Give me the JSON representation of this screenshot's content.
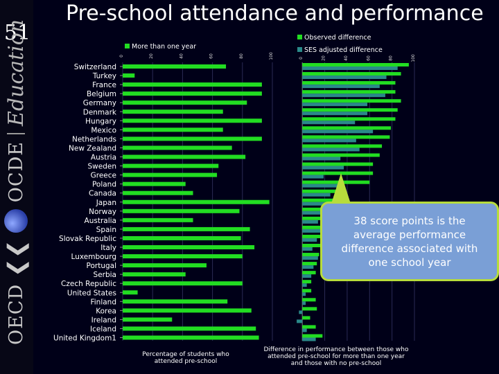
{
  "slide": {
    "number": "51",
    "title": "Pre-school attendance and performance"
  },
  "brand": {
    "oecd": "OECD",
    "ocde": "OCDE",
    "education": "Education"
  },
  "callout": {
    "text": "38 score points is the average performance difference associated with one school year"
  },
  "captions": {
    "left": "Percentage of students who attended pre-school",
    "right": "Difference in performance between those who attended pre-school for more than one year and those with no pre-school"
  },
  "colors": {
    "bars": "#22dd22",
    "adjusted": "#2a8a8a",
    "background": "#000018",
    "callout": "#7a9fd6",
    "callout_border": "#b7dc3c"
  },
  "chart_data": [
    {
      "type": "bar",
      "orientation": "horizontal",
      "legend": [
        "More than one year"
      ],
      "xlim": [
        0,
        100
      ],
      "ticks": [
        "0",
        "20",
        "40",
        "60",
        "80",
        "100"
      ],
      "categories": [
        "Switzerland",
        "Turkey",
        "France",
        "Belgium",
        "Germany",
        "Denmark",
        "Hungary",
        "Mexico",
        "Netherlands",
        "New Zealand",
        "Austria",
        "Sweden",
        "Greece",
        "Poland",
        "Canada",
        "Japan",
        "Norway",
        "Australia",
        "Spain",
        "Slovak Republic",
        "Italy",
        "Luxembourg",
        "Portugal",
        "Serbia",
        "Czech Republic",
        "United States",
        "Finland",
        "Korea",
        "Ireland",
        "Iceland",
        "United Kingdom1"
      ],
      "series": [
        {
          "name": "More than one year",
          "values": [
            69,
            8,
            93,
            93,
            83,
            67,
            93,
            67,
            93,
            73,
            82,
            64,
            63,
            42,
            47,
            98,
            78,
            47,
            85,
            79,
            88,
            80,
            56,
            42,
            80,
            10,
            70,
            86,
            33,
            89,
            91
          ]
        }
      ]
    },
    {
      "type": "bar",
      "orientation": "horizontal",
      "legend": [
        "Observed difference",
        "SES adjusted difference"
      ],
      "xlim": [
        -10,
        100
      ],
      "ticks": [
        "-20",
        "0",
        "20",
        "40",
        "60",
        "80",
        "100"
      ],
      "categories": [
        "Switzerland",
        "Turkey",
        "France",
        "Belgium",
        "Germany",
        "Denmark",
        "Hungary",
        "Mexico",
        "Netherlands",
        "New Zealand",
        "Austria",
        "Sweden",
        "Greece",
        "Poland",
        "Canada",
        "Japan",
        "Norway",
        "Australia",
        "Spain",
        "Slovak Republic",
        "Italy",
        "Luxembourg",
        "Portugal",
        "Serbia",
        "Czech Republic",
        "United States",
        "Finland",
        "Korea",
        "Ireland",
        "Iceland",
        "United Kingdom1"
      ],
      "series": [
        {
          "name": "Observed difference",
          "values": [
            95,
            88,
            83,
            83,
            88,
            85,
            83,
            79,
            78,
            71,
            69,
            63,
            63,
            60,
            38,
            38,
            30,
            30,
            28,
            17,
            17,
            15,
            13,
            12,
            8,
            8,
            12,
            13,
            7,
            12,
            18
          ]
        },
        {
          "name": "SES adjusted difference",
          "values": [
            85,
            75,
            69,
            74,
            58,
            58,
            47,
            63,
            48,
            51,
            34,
            37,
            19,
            36,
            25,
            25,
            22,
            14,
            18,
            13,
            9,
            14,
            10,
            8,
            4,
            3,
            3,
            -3,
            -5,
            4,
            12
          ]
        }
      ]
    }
  ]
}
